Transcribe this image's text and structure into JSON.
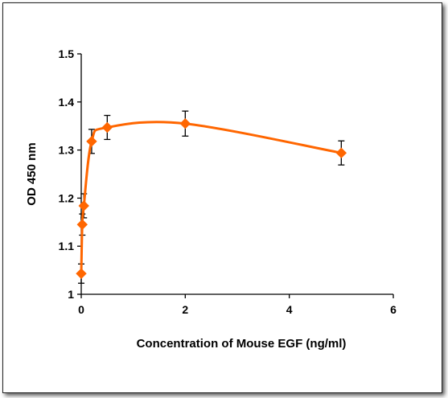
{
  "chart_data": {
    "type": "line",
    "title": "",
    "xlabel": "Concentration of Mouse EGF (ng/ml)",
    "ylabel": "OD 450 nm",
    "xlim": [
      0,
      6
    ],
    "ylim": [
      1,
      1.5
    ],
    "x_ticks": [
      0,
      2,
      4,
      6
    ],
    "y_ticks": [
      1,
      1.1,
      1.2,
      1.3,
      1.4,
      1.5
    ],
    "x_tick_labels": [
      "0",
      "2",
      "4",
      "6"
    ],
    "y_tick_labels": [
      "1",
      "1.1",
      "1.2",
      "1.3",
      "1.4",
      "1.5"
    ],
    "grid": false,
    "legend": "none",
    "series": [
      {
        "color": "#ff6600",
        "marker": "diamond",
        "smooth": true,
        "x": [
          0.0,
          0.02,
          0.05,
          0.2,
          0.5,
          2,
          5
        ],
        "y": [
          1.043,
          1.145,
          1.184,
          1.318,
          1.347,
          1.355,
          1.294
        ],
        "error": [
          0.02,
          0.022,
          0.025,
          0.025,
          0.025,
          0.026,
          0.025
        ]
      }
    ]
  }
}
